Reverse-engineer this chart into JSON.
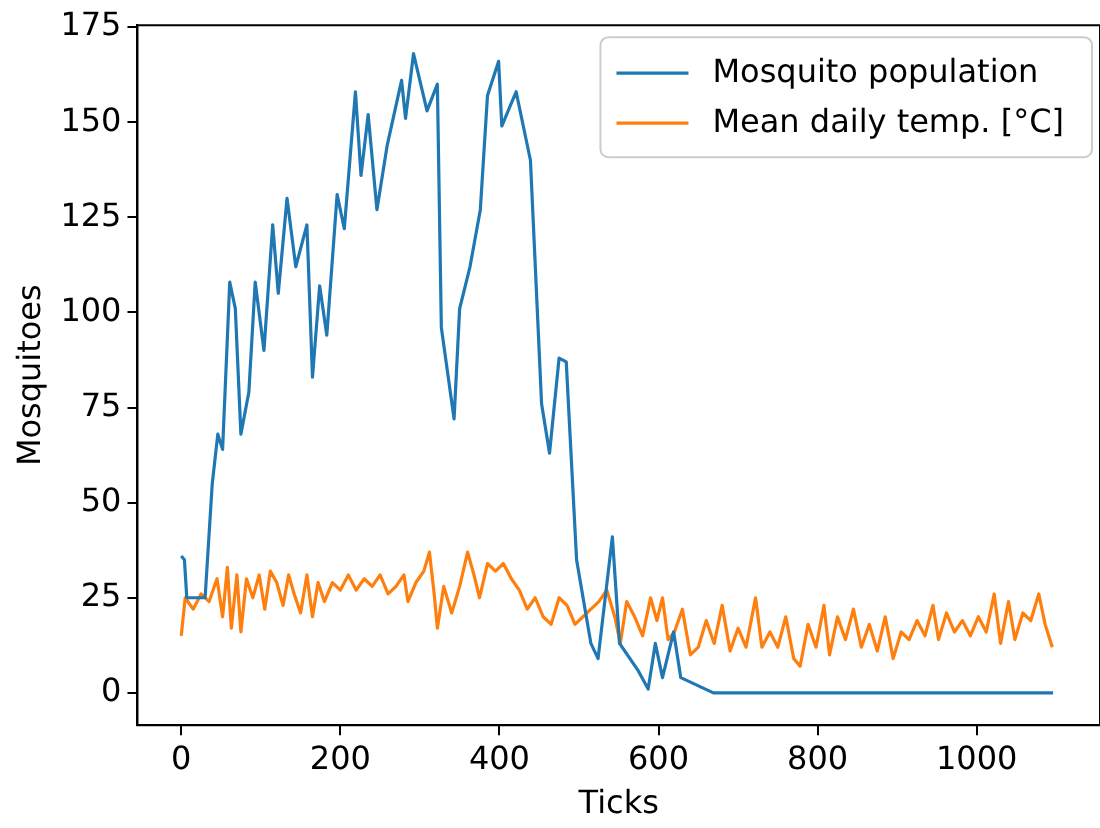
{
  "chart_data": {
    "type": "line",
    "xlabel": "Ticks",
    "ylabel": "Mosquitoes",
    "xlim": [
      -55,
      1155
    ],
    "xticks": [
      0,
      200,
      400,
      600,
      800,
      1000
    ],
    "ylim": [
      -8.5,
      175.5
    ],
    "yticks": [
      0,
      25,
      50,
      75,
      100,
      125,
      150,
      175
    ],
    "grid": false,
    "legend": "top right",
    "marker": "none",
    "line_style": "solid",
    "series": [
      {
        "name": "Mosquito population",
        "color": "#1f77b4",
        "x": [
          0,
          4,
          7,
          30,
          39,
          46,
          52,
          61,
          68,
          75,
          85,
          93,
          104,
          115,
          122,
          133,
          144,
          158,
          165,
          174,
          183,
          196,
          205,
          219,
          226,
          235,
          246,
          259,
          277,
          282,
          292,
          309,
          322,
          327,
          343,
          350,
          363,
          376,
          385,
          399,
          403,
          421,
          439,
          453,
          463,
          475,
          484,
          497,
          515,
          524,
          542,
          551,
          574,
          587,
          596,
          605,
          619,
          628,
          669,
          1096
        ],
        "values": [
          36,
          35,
          25,
          25,
          55,
          68,
          64,
          108,
          101,
          68,
          79,
          108,
          90,
          123,
          105,
          130,
          112,
          123,
          83,
          107,
          94,
          131,
          122,
          158,
          136,
          152,
          127,
          144,
          161,
          151,
          168,
          153,
          160,
          96,
          72,
          101,
          112,
          127,
          157,
          166,
          149,
          158,
          140,
          76,
          63,
          88,
          87,
          35,
          13,
          9,
          41,
          13,
          6,
          1,
          13,
          4,
          16,
          4,
          0,
          0
        ]
      },
      {
        "name": "Mean daily temp. [°C]",
        "color": "#ff7f0e",
        "x": [
          0,
          5,
          15,
          25,
          35,
          45,
          52,
          58,
          63,
          70,
          75,
          82,
          90,
          98,
          105,
          112,
          120,
          128,
          135,
          142,
          150,
          158,
          165,
          172,
          180,
          190,
          200,
          210,
          220,
          230,
          240,
          250,
          260,
          270,
          280,
          285,
          295,
          305,
          312,
          318,
          322,
          330,
          340,
          350,
          360,
          368,
          375,
          385,
          395,
          405,
          415,
          425,
          435,
          445,
          455,
          465,
          475,
          485,
          495,
          505,
          515,
          525,
          535,
          545,
          552,
          560,
          570,
          580,
          590,
          598,
          605,
          612,
          620,
          630,
          640,
          650,
          660,
          670,
          680,
          690,
          700,
          710,
          722,
          730,
          740,
          750,
          760,
          770,
          778,
          788,
          798,
          808,
          815,
          825,
          835,
          845,
          855,
          865,
          875,
          885,
          895,
          905,
          915,
          925,
          935,
          945,
          952,
          962,
          972,
          982,
          992,
          1002,
          1012,
          1022,
          1030,
          1040,
          1048,
          1058,
          1068,
          1078,
          1086,
          1095
        ],
        "values": [
          15,
          25,
          22,
          26,
          24,
          30,
          20,
          33,
          17,
          31,
          16,
          30,
          25,
          31,
          22,
          32,
          29,
          23,
          31,
          26,
          21,
          31,
          20,
          29,
          24,
          29,
          27,
          31,
          27,
          30,
          28,
          31,
          26,
          28,
          31,
          24,
          29,
          32,
          37,
          26,
          17,
          28,
          21,
          28,
          37,
          31,
          25,
          34,
          32,
          34,
          30,
          27,
          22,
          25,
          20,
          18,
          25,
          23,
          18,
          20,
          22,
          24,
          27,
          20,
          13,
          24,
          20,
          15,
          25,
          19,
          25,
          14,
          16,
          22,
          10,
          12,
          19,
          13,
          23,
          11,
          17,
          12,
          25,
          12,
          16,
          12,
          20,
          9,
          7,
          18,
          12,
          23,
          10,
          20,
          14,
          22,
          12,
          18,
          11,
          20,
          9,
          16,
          14,
          19,
          15,
          23,
          14,
          21,
          16,
          19,
          15,
          20,
          16,
          26,
          13,
          24,
          14,
          21,
          19,
          26,
          18,
          12
        ]
      }
    ]
  }
}
